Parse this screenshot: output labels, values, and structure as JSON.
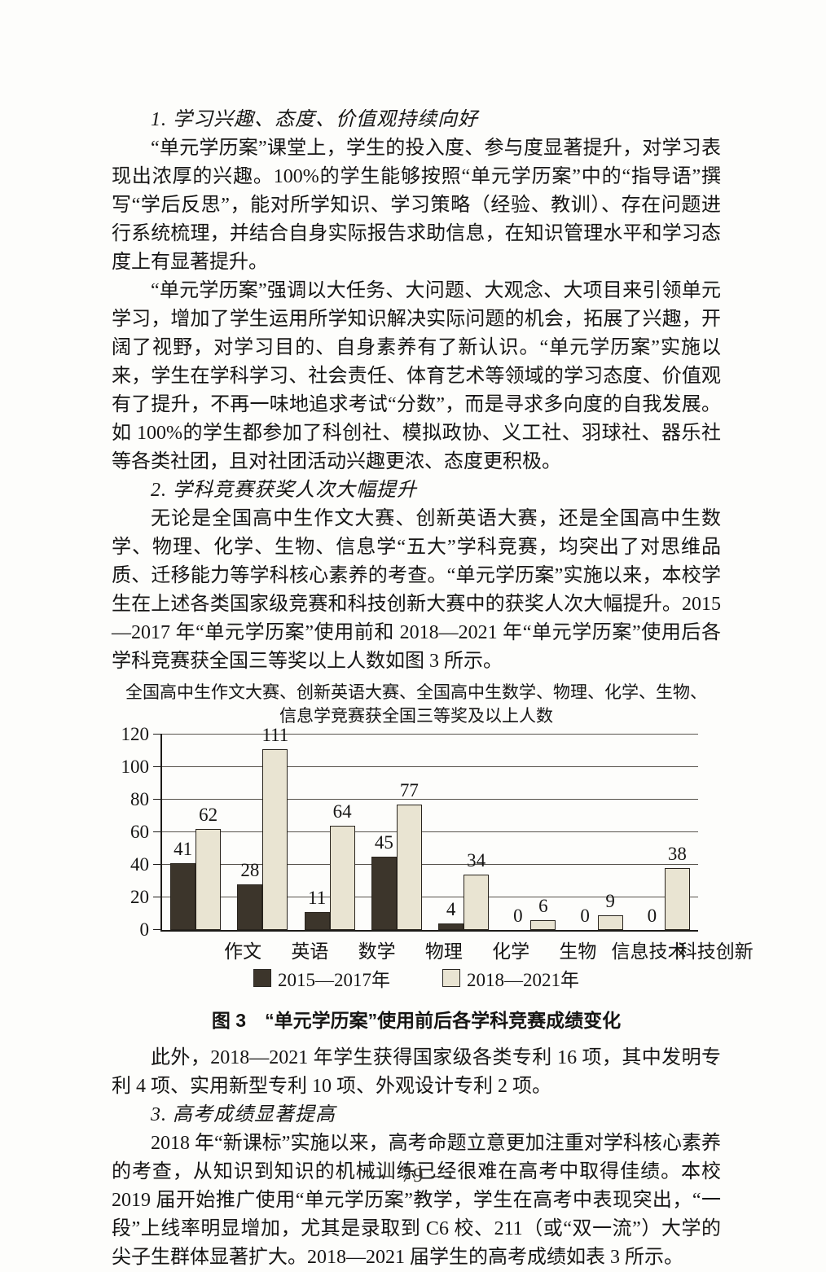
{
  "doc": {
    "heading1": "1. 学习兴趣、态度、价值观持续向好",
    "para1": "“单元学历案”课堂上，学生的投入度、参与度显著提升，对学习表现出浓厚的兴趣。100%的学生能够按照“单元学历案”中的“指导语”撰写“学后反思”，能对所学知识、学习策略（经验、教训）、存在问题进行系统梳理，并结合自身实际报告求助信息，在知识管理水平和学习态度上有显著提升。",
    "para2": "“单元学历案”强调以大任务、大问题、大观念、大项目来引领单元学习，增加了学生运用所学知识解决实际问题的机会，拓展了兴趣，开阔了视野，对学习目的、自身素养有了新认识。“单元学历案”实施以来，学生在学科学习、社会责任、体育艺术等领域的学习态度、价值观有了提升，不再一味地追求考试“分数”，而是寻求多向度的自我发展。如 100%的学生都参加了科创社、模拟政协、义工社、羽球社、器乐社等各类社团，且对社团活动兴趣更浓、态度更积极。",
    "heading2": "2. 学科竞赛获奖人次大幅提升",
    "para3": "无论是全国高中生作文大赛、创新英语大赛，还是全国高中生数学、物理、化学、生物、信息学“五大”学科竞赛，均突出了对思维品质、迁移能力等学科核心素养的考查。“单元学历案”实施以来，本校学生在上述各类国家级竞赛和科技创新大赛中的获奖人次大幅提升。2015—2017 年“单元学历案”使用前和 2018—2021 年“单元学历案”使用后各学科竞赛获全国三等奖以上人数如图 3 所示。",
    "figure_caption": "图 3　“单元学历案”使用前后各学科竞赛成绩变化",
    "para4": "此外，2018—2021 年学生获得国家级各类专利 16 项，其中发明专利 4 项、实用新型专利 10 项、外观设计专利 2 项。",
    "heading3": "3. 高考成绩显著提高",
    "para5": "2018 年“新课标”实施以来，高考命题立意更加注重对学科核心素养的考查，从知识到知识的机械训练已经很难在高考中取得佳绩。本校 2019 届开始推广使用“单元学历案”教学，学生在高考中表现突出，“一段”上线率明显增加，尤其是录取到 C6 校、211（或“双一流”）大学的尖子生群体显著扩大。2018—2021 届学生的高考成绩如表 3 所示。",
    "footer": "— 79 —"
  },
  "chart_data": {
    "type": "bar",
    "title_lines": [
      "全国高中生作文大赛、创新英语大赛、全国高中生数学、物理、化学、生物、",
      "信息学竞赛获全国三等奖及以上人数"
    ],
    "title": "全国高中生作文大赛、创新英语大赛、全国高中生数学、物理、化学、生物、信息学竞赛获全国三等奖及以上人数",
    "categories": [
      "作文",
      "英语",
      "数学",
      "物理",
      "化学",
      "生物",
      "信息技术",
      "科技创新"
    ],
    "series": [
      {
        "name": "2015—2017年",
        "color": "#3c352b",
        "values": [
          41,
          28,
          11,
          45,
          4,
          0,
          0,
          0
        ]
      },
      {
        "name": "2018—2021年",
        "color": "#e9e4d2",
        "values": [
          62,
          111,
          64,
          77,
          34,
          6,
          9,
          38
        ]
      }
    ],
    "xlabel": "",
    "ylabel": "",
    "ylim": [
      0,
      120
    ],
    "ytick_step": 20,
    "grid": true,
    "legend_position": "bottom"
  }
}
